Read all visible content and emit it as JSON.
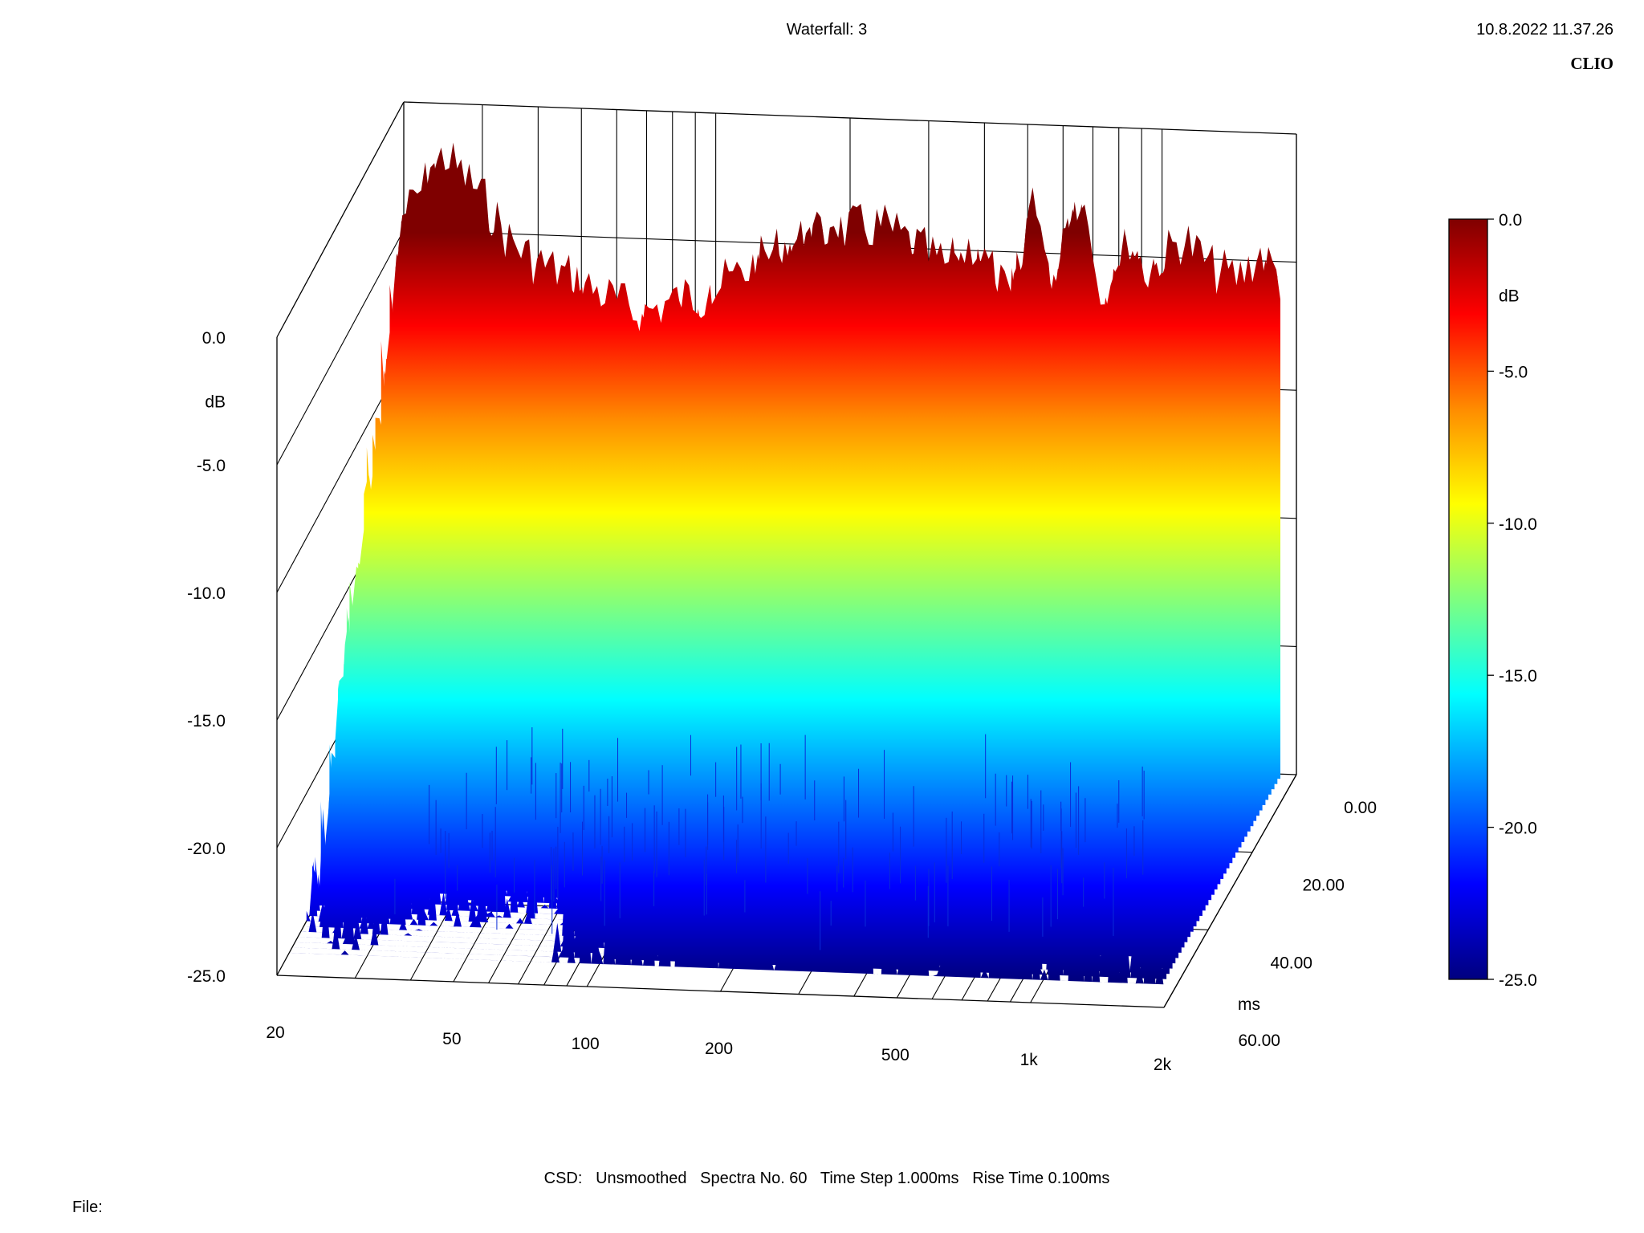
{
  "header": {
    "title": "Waterfall: 3",
    "timestamp": "10.8.2022 11.37.26",
    "brand": "CLIO"
  },
  "footer": {
    "info": "CSD:   Unsmoothed   Spectra No. 60   Time Step 1.000ms   Rise Time 0.100ms",
    "file_label": "File:"
  },
  "chart_data": {
    "type": "waterfall",
    "title": "Waterfall: 3",
    "x_axis": {
      "label": "",
      "scale": "log",
      "range": [
        20,
        2000
      ],
      "tick_labels": [
        "20",
        "50",
        "100",
        "200",
        "500",
        "1k",
        "2k"
      ]
    },
    "y_axis": {
      "label": "dB",
      "range": [
        -25,
        0
      ],
      "tick_labels": [
        "0.0",
        "-5.0",
        "-10.0",
        "-15.0",
        "-20.0",
        "-25.0"
      ]
    },
    "z_axis": {
      "label": "ms",
      "range": [
        0,
        60
      ],
      "tick_labels": [
        "0.00",
        "20.00",
        "40.00",
        "60.00"
      ]
    },
    "colorbar": {
      "label": "dB",
      "range": [
        -25,
        0
      ],
      "tick_labels": [
        "0.0",
        "-5.0",
        "-10.0",
        "-15.0",
        "-20.0",
        "-25.0"
      ],
      "colors": [
        "#7f0000",
        "#ff0000",
        "#ff8c00",
        "#ffff00",
        "#7fff7f",
        "#00ffff",
        "#007fff",
        "#0000ff",
        "#00007f"
      ]
    },
    "front_spectrum": {
      "frequencies": [
        20,
        25,
        30,
        35,
        40,
        50,
        60,
        70,
        80,
        100,
        120,
        150,
        200,
        250,
        300,
        350,
        400,
        450,
        500,
        550,
        600,
        650,
        700,
        800,
        900,
        1000,
        1200,
        1400,
        1600,
        1800,
        2000
      ],
      "values_db": [
        -3.5,
        -0.8,
        -2.2,
        -4.0,
        -4.8,
        -5.5,
        -6.2,
        -6.8,
        -6.3,
        -5.8,
        -5.0,
        -3.8,
        -3.2,
        -3.0,
        -3.8,
        -4.5,
        -3.5,
        -4.8,
        -6.2,
        -0.8,
        -5.5,
        -3.0,
        -1.2,
        -5.8,
        -3.2,
        -4.5,
        -3.0,
        -4.2,
        -4.5,
        -3.5,
        -4.5
      ]
    },
    "series": [
      {
        "name": "",
        "time_ms": 0
      },
      {
        "name": "",
        "time_ms": 60
      }
    ]
  }
}
